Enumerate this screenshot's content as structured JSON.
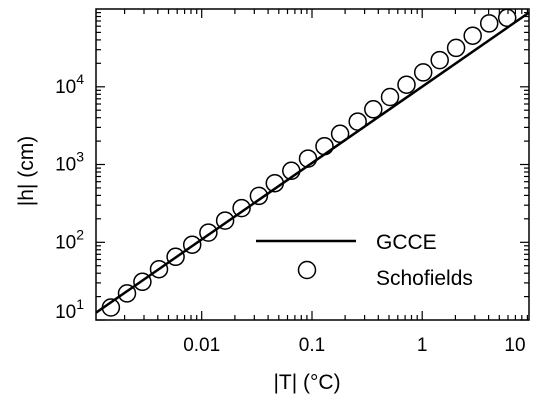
{
  "chart_data": {
    "type": "scatter",
    "xscale": "log",
    "yscale": "log",
    "xlim": [
      0.0011,
      9.3
    ],
    "ylim": [
      10,
      100000
    ],
    "xlabel": "|T| (°C)",
    "ylabel": "|h| (cm)",
    "x_ticks": [
      {
        "value": 0.01,
        "label": "0.01"
      },
      {
        "value": 0.1,
        "label": "0.1"
      },
      {
        "value": 1,
        "label": "1"
      },
      {
        "value": 10,
        "label": "10"
      }
    ],
    "y_ticks": [
      {
        "value": 10,
        "base": "10",
        "exp": "1"
      },
      {
        "value": 100,
        "base": "10",
        "exp": "2"
      },
      {
        "value": 1000,
        "base": "10",
        "exp": "3"
      },
      {
        "value": 10000,
        "base": "10",
        "exp": "4"
      }
    ],
    "legend_position": "lower-right",
    "series": [
      {
        "name": "GCCE",
        "kind": "line",
        "color": "#000000",
        "x": [
          0.0011,
          9.3
        ],
        "y": [
          12.4,
          90000
        ]
      },
      {
        "name": "Schofields",
        "kind": "scatter",
        "marker": "open-circle",
        "color": "#000000",
        "x": [
          0.0015,
          0.0021,
          0.0029,
          0.0041,
          0.0058,
          0.0082,
          0.0115,
          0.0163,
          0.023,
          0.033,
          0.046,
          0.065,
          0.092,
          0.13,
          0.18,
          0.26,
          0.36,
          0.51,
          0.72,
          1.02,
          1.44,
          2.03,
          2.87,
          4.05,
          5.9
        ],
        "y": [
          14.5,
          22,
          31,
          45,
          65,
          93,
          133,
          190,
          275,
          395,
          575,
          830,
          1190,
          1720,
          2480,
          3560,
          5130,
          7380,
          10620,
          15290,
          22000,
          31600,
          45400,
          65200,
          77000
        ]
      }
    ]
  }
}
